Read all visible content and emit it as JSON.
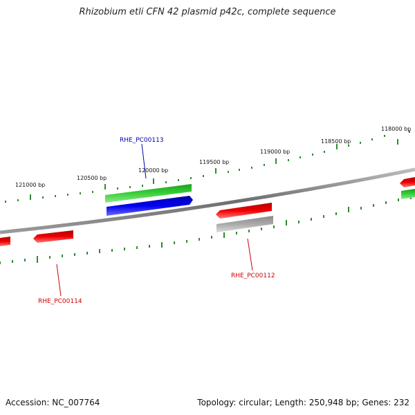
{
  "title": "Rhizobium etli CFN 42 plasmid p42c, complete sequence",
  "footer": {
    "accession": "Accession: NC_007764",
    "summary": "Topology: circular; Length: 250,948 bp; Genes: 232"
  },
  "colors": {
    "backbone": "#7a7a7a",
    "tick": "#2e8b2e",
    "forward_gene": "#33cc33",
    "cds_blue": "#0000ee",
    "reverse_gene": "#ee0000",
    "pseudo_gene": "#aaaaaa",
    "label_blue": "#0000aa",
    "label_red": "#cc0000"
  },
  "tick_labels": [
    "121000 bp",
    "120500 bp",
    "120000 bp",
    "119500 bp",
    "119000 bp",
    "118500 bp",
    "118000 bp"
  ],
  "gene_labels": {
    "g113": "RHE_PC00113",
    "g112": "RHE_PC00112",
    "g114": "RHE_PC00114"
  }
}
